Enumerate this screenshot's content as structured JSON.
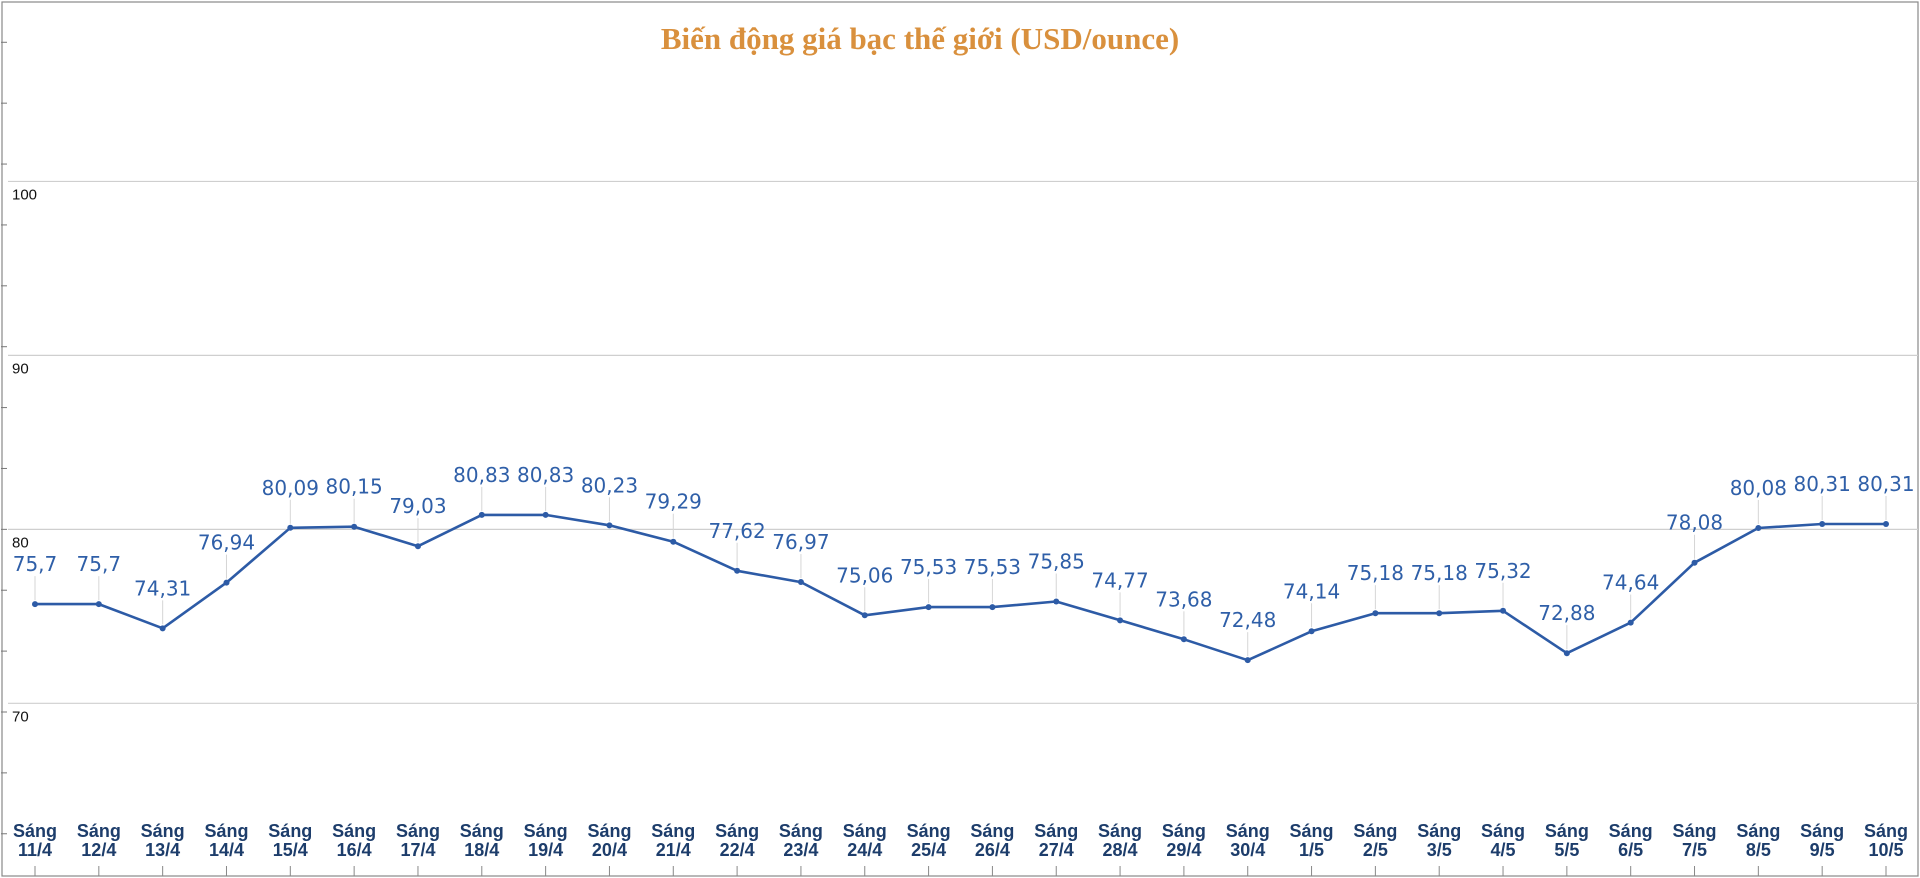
{
  "chart_data": {
    "type": "line",
    "title": "Biến động giá bạc thế giới (USD/ounce)",
    "categories": [
      [
        "Sáng",
        "11/4"
      ],
      [
        "Sáng",
        "12/4"
      ],
      [
        "Sáng",
        "13/4"
      ],
      [
        "Sáng",
        "14/4"
      ],
      [
        "Sáng",
        "15/4"
      ],
      [
        "Sáng",
        "16/4"
      ],
      [
        "Sáng",
        "17/4"
      ],
      [
        "Sáng",
        "18/4"
      ],
      [
        "Sáng",
        "19/4"
      ],
      [
        "Sáng",
        "20/4"
      ],
      [
        "Sáng",
        "21/4"
      ],
      [
        "Sáng",
        "22/4"
      ],
      [
        "Sáng",
        "23/4"
      ],
      [
        "Sáng",
        "24/4"
      ],
      [
        "Sáng",
        "25/4"
      ],
      [
        "Sáng",
        "26/4"
      ],
      [
        "Sáng",
        "27/4"
      ],
      [
        "Sáng",
        "28/4"
      ],
      [
        "Sáng",
        "29/4"
      ],
      [
        "Sáng",
        "30/4"
      ],
      [
        "Sáng",
        "1/5"
      ],
      [
        "Sáng",
        "2/5"
      ],
      [
        "Sáng",
        "3/5"
      ],
      [
        "Sáng",
        "4/5"
      ],
      [
        "Sáng",
        "5/5"
      ],
      [
        "Sáng",
        "6/5"
      ],
      [
        "Sáng",
        "7/5"
      ],
      [
        "Sáng",
        "8/5"
      ],
      [
        "Sáng",
        "9/5"
      ],
      [
        "Sáng",
        "10/5"
      ]
    ],
    "values": [
      75.7,
      75.7,
      74.31,
      76.94,
      80.09,
      80.15,
      79.03,
      80.83,
      80.83,
      80.23,
      79.29,
      77.62,
      76.97,
      75.06,
      75.53,
      75.53,
      75.85,
      74.77,
      73.68,
      72.48,
      74.14,
      75.18,
      75.18,
      75.32,
      72.88,
      74.64,
      78.08,
      80.08,
      80.31,
      80.31
    ],
    "data_labels": [
      "75,7",
      "75,7",
      "74,31",
      "76,94",
      "80,09",
      "80,15",
      "79,03",
      "80,83",
      "80,83",
      "80,23",
      "79,29",
      "77,62",
      "76,97",
      "75,06",
      "75,53",
      "75,53",
      "75,85",
      "74,77",
      "73,68",
      "72,48",
      "74,14",
      "75,18",
      "75,18",
      "75,32",
      "72,88",
      "74,64",
      "78,08",
      "80,08",
      "80,31",
      "80,31"
    ],
    "yticks": [
      70,
      80,
      90,
      100
    ],
    "ytick_labels": [
      "70",
      "80",
      "90",
      "100"
    ],
    "ylim": [
      63,
      110
    ],
    "grid": true,
    "legend": "none",
    "line_color": "#2d5ba6",
    "label_color": "#2f5fa8",
    "title_color": "#d9903d",
    "xlabel_color": "#1d3d6b"
  }
}
